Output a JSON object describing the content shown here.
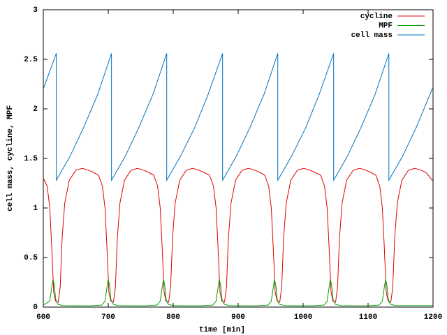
{
  "chart_data": {
    "type": "line",
    "xlabel": "time [min]",
    "ylabel": "cell mass, cycline, MPF",
    "xlim": [
      600,
      1200
    ],
    "xticks": [
      600,
      700,
      800,
      900,
      1000,
      1100,
      1200
    ],
    "ylim": [
      0,
      3
    ],
    "yticks": [
      0,
      0.5,
      1,
      1.5,
      2,
      2.5,
      3
    ],
    "legend": "top-right",
    "grid": false,
    "series": [
      {
        "name": "cycline",
        "color": "#e00000",
        "x": [
          600,
          606,
          610,
          613,
          616,
          619,
          623,
          626,
          629,
          633,
          640,
          650,
          660,
          670,
          677,
          685,
          691,
          695,
          698,
          701,
          704,
          708,
          711,
          714,
          718,
          725,
          735,
          745,
          755,
          762,
          770,
          776,
          780,
          783,
          786,
          789,
          793,
          796,
          799,
          803,
          810,
          820,
          830,
          840,
          847,
          856,
          862,
          866,
          869,
          872,
          875,
          879,
          882,
          885,
          889,
          896,
          906,
          916,
          926,
          933,
          941,
          947,
          951,
          954,
          957,
          960,
          964,
          967,
          970,
          974,
          981,
          991,
          1001,
          1011,
          1018,
          1027,
          1033,
          1037,
          1040,
          1043,
          1046,
          1050,
          1053,
          1056,
          1060,
          1067,
          1077,
          1087,
          1097,
          1104,
          1112,
          1118,
          1122,
          1125,
          1128,
          1131,
          1135,
          1138,
          1141,
          1145,
          1152,
          1162,
          1172,
          1182,
          1189,
          1200
        ],
        "values": [
          1.3,
          1.22,
          1.0,
          0.6,
          0.15,
          0.06,
          0.05,
          0.2,
          0.7,
          1.05,
          1.28,
          1.38,
          1.4,
          1.38,
          1.36,
          1.33,
          1.22,
          1.0,
          0.6,
          0.15,
          0.06,
          0.05,
          0.2,
          0.7,
          1.05,
          1.28,
          1.38,
          1.4,
          1.38,
          1.36,
          1.33,
          1.22,
          1.0,
          0.6,
          0.15,
          0.06,
          0.05,
          0.2,
          0.7,
          1.05,
          1.28,
          1.38,
          1.4,
          1.38,
          1.36,
          1.33,
          1.22,
          1.0,
          0.6,
          0.15,
          0.06,
          0.05,
          0.2,
          0.7,
          1.05,
          1.28,
          1.38,
          1.4,
          1.38,
          1.36,
          1.33,
          1.22,
          1.0,
          0.6,
          0.15,
          0.06,
          0.05,
          0.2,
          0.7,
          1.05,
          1.28,
          1.38,
          1.4,
          1.38,
          1.36,
          1.33,
          1.22,
          1.0,
          0.6,
          0.15,
          0.06,
          0.05,
          0.2,
          0.7,
          1.05,
          1.28,
          1.38,
          1.4,
          1.38,
          1.36,
          1.33,
          1.22,
          1.0,
          0.6,
          0.15,
          0.06,
          0.05,
          0.2,
          0.7,
          1.05,
          1.28,
          1.38,
          1.4,
          1.38,
          1.36,
          1.27
        ]
      },
      {
        "name": "MPF",
        "color": "#00a000",
        "x": [
          600,
          610,
          613,
          615,
          617,
          619,
          622,
          630,
          670,
          690,
          695,
          698,
          700,
          702,
          704,
          707,
          715,
          755,
          775,
          780,
          783,
          785,
          787,
          789,
          792,
          800,
          840,
          861,
          866,
          869,
          871,
          873,
          875,
          878,
          886,
          926,
          946,
          951,
          954,
          956,
          958,
          960,
          963,
          971,
          1011,
          1032,
          1037,
          1040,
          1042,
          1044,
          1046,
          1049,
          1057,
          1097,
          1117,
          1122,
          1125,
          1127,
          1129,
          1131,
          1134,
          1142,
          1200
        ],
        "values": [
          0.02,
          0.06,
          0.2,
          0.28,
          0.22,
          0.08,
          0.03,
          0.015,
          0.012,
          0.02,
          0.06,
          0.2,
          0.28,
          0.22,
          0.08,
          0.03,
          0.015,
          0.012,
          0.02,
          0.06,
          0.2,
          0.28,
          0.22,
          0.08,
          0.03,
          0.015,
          0.012,
          0.02,
          0.06,
          0.2,
          0.28,
          0.22,
          0.08,
          0.03,
          0.015,
          0.012,
          0.02,
          0.06,
          0.2,
          0.28,
          0.22,
          0.08,
          0.03,
          0.015,
          0.012,
          0.02,
          0.06,
          0.2,
          0.28,
          0.22,
          0.08,
          0.03,
          0.015,
          0.012,
          0.02,
          0.06,
          0.2,
          0.28,
          0.22,
          0.08,
          0.03,
          0.015,
          0.015
        ]
      },
      {
        "name": "cell mass",
        "color": "#0070c0",
        "x": [
          600,
          620,
          620,
          641,
          662,
          684,
          705,
          705,
          726,
          747,
          769,
          790,
          790,
          811,
          833,
          854,
          876,
          876,
          897,
          918,
          940,
          961,
          961,
          982,
          1004,
          1025,
          1047,
          1047,
          1068,
          1089,
          1111,
          1132,
          1132,
          1153,
          1174,
          1200
        ],
        "values": [
          2.2,
          2.56,
          1.28,
          1.52,
          1.81,
          2.15,
          2.56,
          1.28,
          1.52,
          1.81,
          2.15,
          2.56,
          1.28,
          1.52,
          1.81,
          2.15,
          2.56,
          1.28,
          1.52,
          1.81,
          2.15,
          2.56,
          1.28,
          1.52,
          1.81,
          2.15,
          2.56,
          1.28,
          1.52,
          1.81,
          2.15,
          2.56,
          1.28,
          1.52,
          1.81,
          2.22
        ]
      }
    ]
  }
}
